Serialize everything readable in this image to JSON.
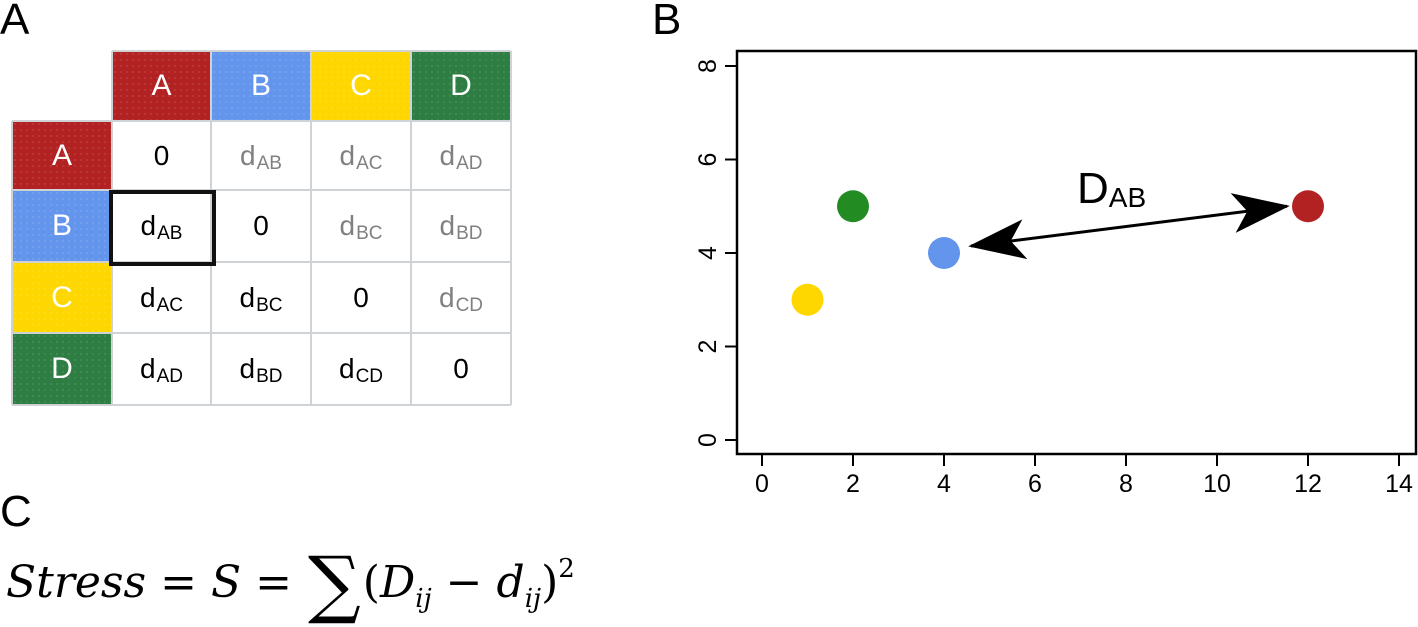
{
  "panels": {
    "a": {
      "label": "A"
    },
    "b": {
      "label": "B"
    },
    "c": {
      "label": "C"
    }
  },
  "matrix": {
    "labels": [
      "A",
      "B",
      "C",
      "D"
    ],
    "colors": {
      "A": "#B22222",
      "B": "#6495ED",
      "C": "#FFD700",
      "D": "#2E7D42"
    },
    "rows": [
      [
        {
          "base": "0",
          "sub": "",
          "tone": "black"
        },
        {
          "base": "d",
          "sub": "AB",
          "tone": "gray"
        },
        {
          "base": "d",
          "sub": "AC",
          "tone": "gray"
        },
        {
          "base": "d",
          "sub": "AD",
          "tone": "gray"
        }
      ],
      [
        {
          "base": "d",
          "sub": "AB",
          "tone": "black"
        },
        {
          "base": "0",
          "sub": "",
          "tone": "black"
        },
        {
          "base": "d",
          "sub": "BC",
          "tone": "gray"
        },
        {
          "base": "d",
          "sub": "BD",
          "tone": "gray"
        }
      ],
      [
        {
          "base": "d",
          "sub": "AC",
          "tone": "black"
        },
        {
          "base": "d",
          "sub": "BC",
          "tone": "black"
        },
        {
          "base": "0",
          "sub": "",
          "tone": "black"
        },
        {
          "base": "d",
          "sub": "CD",
          "tone": "gray"
        }
      ],
      [
        {
          "base": "d",
          "sub": "AD",
          "tone": "black"
        },
        {
          "base": "d",
          "sub": "BD",
          "tone": "black"
        },
        {
          "base": "d",
          "sub": "CD",
          "tone": "black"
        },
        {
          "base": "0",
          "sub": "",
          "tone": "black"
        }
      ]
    ],
    "highlighted_cell": {
      "row": "B",
      "col": "A",
      "text": "dAB"
    }
  },
  "chart_data": {
    "type": "scatter",
    "title": "",
    "xlabel": "",
    "ylabel": "",
    "xlim": [
      0,
      14
    ],
    "ylim": [
      0,
      8
    ],
    "x_ticks": [
      "0",
      "2",
      "4",
      "6",
      "8",
      "10",
      "12",
      "14"
    ],
    "y_ticks": [
      "0",
      "2",
      "4",
      "6",
      "8"
    ],
    "grid": false,
    "legend": null,
    "points": [
      {
        "name": "A",
        "x": 12,
        "y": 5,
        "color": "#B22222"
      },
      {
        "name": "B",
        "x": 4,
        "y": 4,
        "color": "#6495ED"
      },
      {
        "name": "C",
        "x": 1,
        "y": 3,
        "color": "#FFD700"
      },
      {
        "name": "D",
        "x": 2,
        "y": 5,
        "color": "#228B22"
      }
    ],
    "annotations": [
      {
        "type": "double-arrow",
        "from": "B",
        "to": "A",
        "label": "D",
        "label_sub": "AB"
      }
    ]
  },
  "formula": {
    "lhs": "Stress",
    "eq1": "=",
    "mid": "S",
    "eq2": "=",
    "sum": "∑",
    "open": "(",
    "D": "D",
    "D_sub": "ij",
    "minus": "−",
    "d": "d",
    "d_sub": "ij",
    "close": ")",
    "power": "2"
  }
}
